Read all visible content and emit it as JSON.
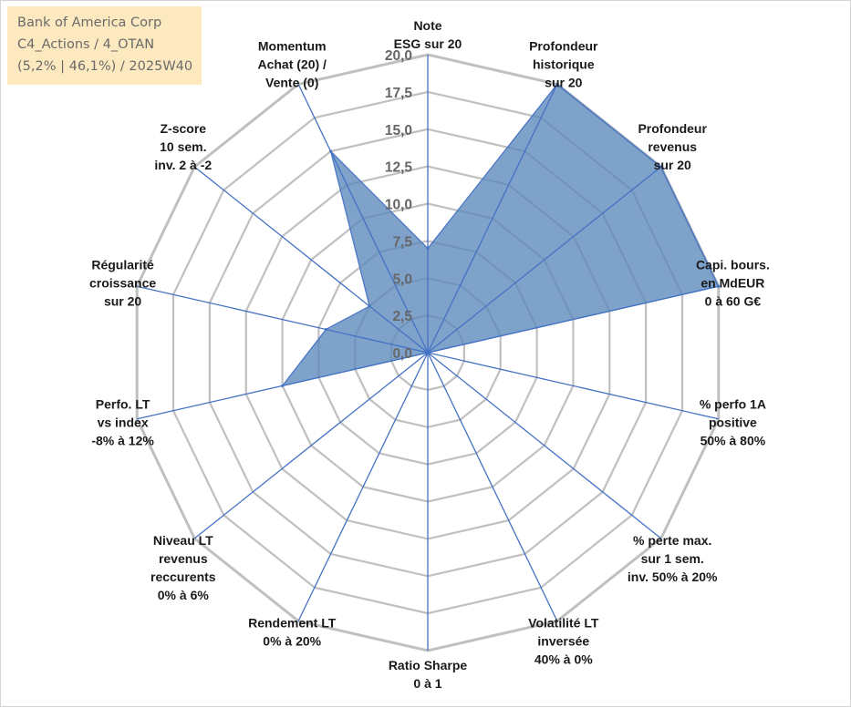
{
  "info_box": {
    "line1": "Bank of America Corp",
    "line2": "C4_Actions / 4_OTAN",
    "line3": "(5,2% | 46,1%) / 2025W40"
  },
  "colors": {
    "fill": "#5b88bd",
    "stroke": "#4472c4",
    "grid": "#c0c0c0",
    "label": "#1a1a1a",
    "tick": "#666666",
    "info_bg": "#fde9bf"
  },
  "chart_data": {
    "type": "radar",
    "title": "",
    "rmin": 0,
    "rmax": 20,
    "ticks": [
      "0,0",
      "2,5",
      "5,0",
      "7,5",
      "10,0",
      "12,5",
      "15,0",
      "17,5",
      "20,0"
    ],
    "axes": [
      {
        "label": [
          "Note",
          "ESG sur 20"
        ],
        "value": 7
      },
      {
        "label": [
          "Profondeur",
          "historique",
          "sur 20"
        ],
        "value": 20
      },
      {
        "label": [
          "Profondeur",
          "revenus",
          "sur 20"
        ],
        "value": 20
      },
      {
        "label": [
          "Capi. bours.",
          "en MdEUR",
          "0 à 60 G€"
        ],
        "value": 20
      },
      {
        "label": [
          "% perfo 1A",
          "positive",
          "50% à 80%"
        ],
        "value": 0
      },
      {
        "label": [
          "% perte max.",
          "sur 1 sem.",
          "inv. 50% à 20%"
        ],
        "value": 0
      },
      {
        "label": [
          "Volatilité LT",
          "inversée",
          "40% à 0%"
        ],
        "value": 0
      },
      {
        "label": [
          "Ratio Sharpe",
          "0 à 1"
        ],
        "value": 0
      },
      {
        "label": [
          "Rendement LT",
          "0% à 20%"
        ],
        "value": 0
      },
      {
        "label": [
          "Niveau LT",
          "revenus",
          "reccurents",
          "0% à 6%"
        ],
        "value": 0
      },
      {
        "label": [
          "Perfo. LT",
          "vs index",
          "-8% à 12%"
        ],
        "value": 10
      },
      {
        "label": [
          "Régularité",
          "croissance",
          "sur 20"
        ],
        "value": 7
      },
      {
        "label": [
          "Z-score",
          "10 sem.",
          "inv. 2 à -2"
        ],
        "value": 5
      },
      {
        "label": [
          "Momentum",
          "Achat (20) /",
          "Vente (0)"
        ],
        "value": 15
      }
    ]
  }
}
